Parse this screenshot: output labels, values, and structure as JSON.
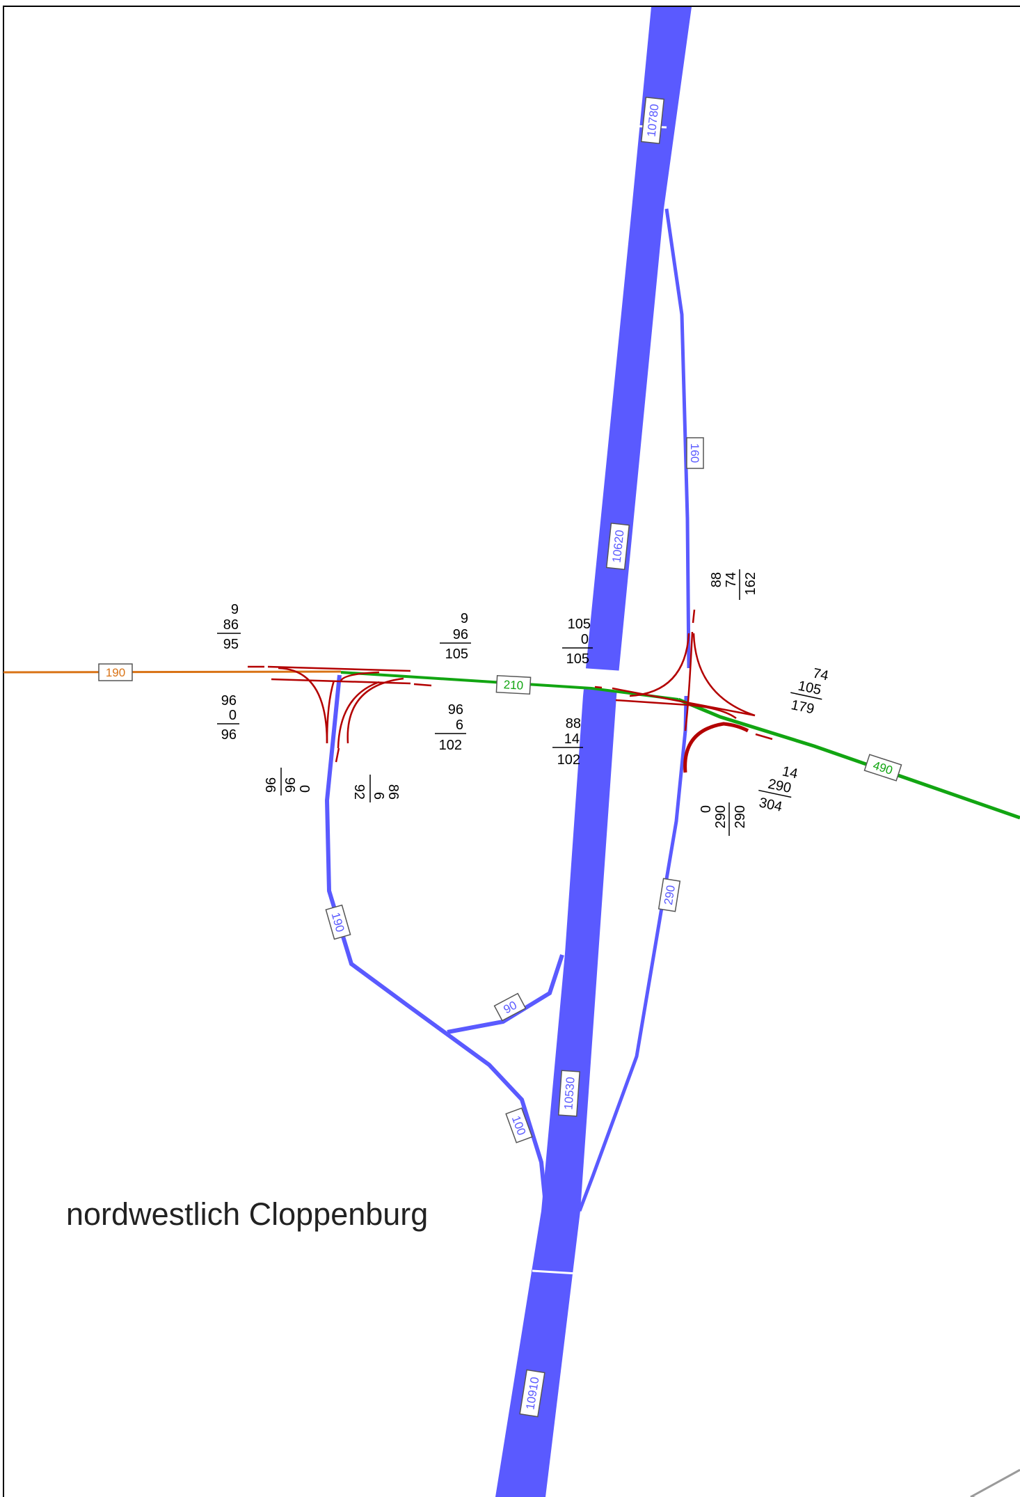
{
  "title": "nordwestlich Cloppenburg",
  "colors": {
    "motorway": "#5a5aff",
    "ramp": "#5a5aff",
    "road_west": "#d97316",
    "road_east": "#12a512",
    "turn_movement": "#b30000",
    "frame": "#000000",
    "minor_road": "#9a9a9a",
    "label_box_border": "#555555"
  },
  "icons": {
    "segment_label": "rectangle-label-box",
    "turn_movement": "curved-arrow-lines"
  },
  "segment_labels": {
    "motorway_north": "10780",
    "motorway_middle": "10620",
    "motorway_south_upper": "10530",
    "motorway_south": "10910",
    "ramp_northeast": "160",
    "ramp_southeast": "290",
    "ramp_southwest": "190",
    "ramp_sw_to_mw": "90",
    "ramp_sw_from_mw": "100",
    "road_west": "190",
    "road_bridge": "210",
    "road_east": "490"
  },
  "counts": {
    "w_upper": [
      "9",
      "86",
      "95"
    ],
    "w_lower": [
      "96",
      "0",
      "96"
    ],
    "w_south_a": [
      "0",
      "96",
      "96"
    ],
    "w_south_b": [
      "86",
      "6",
      "92"
    ],
    "mid_upper": [
      "9",
      "96",
      "105"
    ],
    "mid_lower": [
      "96",
      "6",
      "102"
    ],
    "bridge_upper": [
      "105",
      "0",
      "105"
    ],
    "bridge_lower": [
      "88",
      "14",
      "102"
    ],
    "e_north": [
      "88",
      "74",
      "162"
    ],
    "e_east_upper": [
      "74",
      "105",
      "179"
    ],
    "e_east_lower": [
      "14",
      "290",
      "304"
    ],
    "e_south": [
      "0",
      "290",
      "290"
    ]
  }
}
